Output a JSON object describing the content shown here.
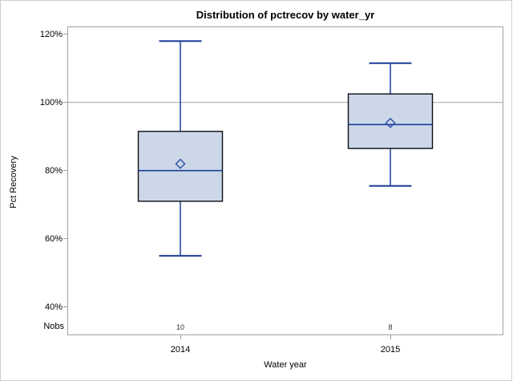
{
  "figure": {
    "border_color": "#cbcfd2",
    "background": "#ffffff"
  },
  "chart_data": {
    "type": "boxplot",
    "title": "Distribution of pctrecov by water_yr",
    "xlabel": "Water year",
    "ylabel": "Pct Recovery",
    "categories": [
      "2014",
      "2015"
    ],
    "nobs_label": "Nobs",
    "y_axis": {
      "ticks": [
        "120%",
        "100%",
        "80%",
        "60%",
        "40%"
      ],
      "tick_values": [
        120,
        100,
        80,
        60,
        40
      ],
      "ylim": [
        32,
        122
      ],
      "unit": "percent"
    },
    "reference_line": 100,
    "grid": "reference line at 100% only",
    "legend": "none",
    "series": [
      {
        "category": "2014",
        "nobs": "10",
        "whisker_low": 55,
        "q1": 71,
        "median": 80,
        "mean": 82,
        "q3": 91.5,
        "whisker_high": 118
      },
      {
        "category": "2015",
        "nobs": "8",
        "whisker_low": 75.5,
        "q1": 86.5,
        "median": 93.5,
        "mean": 94,
        "q3": 102.5,
        "whisker_high": 111.5
      }
    ],
    "colors": {
      "box_fill": "#ccd8e8",
      "box_stroke": "#0b0e14",
      "whisker": "#1c3d96",
      "mean_marker": "#2a4da5",
      "reference_line": "#ababab",
      "axis_frame": "#9da3a6",
      "text": "#000000"
    }
  }
}
